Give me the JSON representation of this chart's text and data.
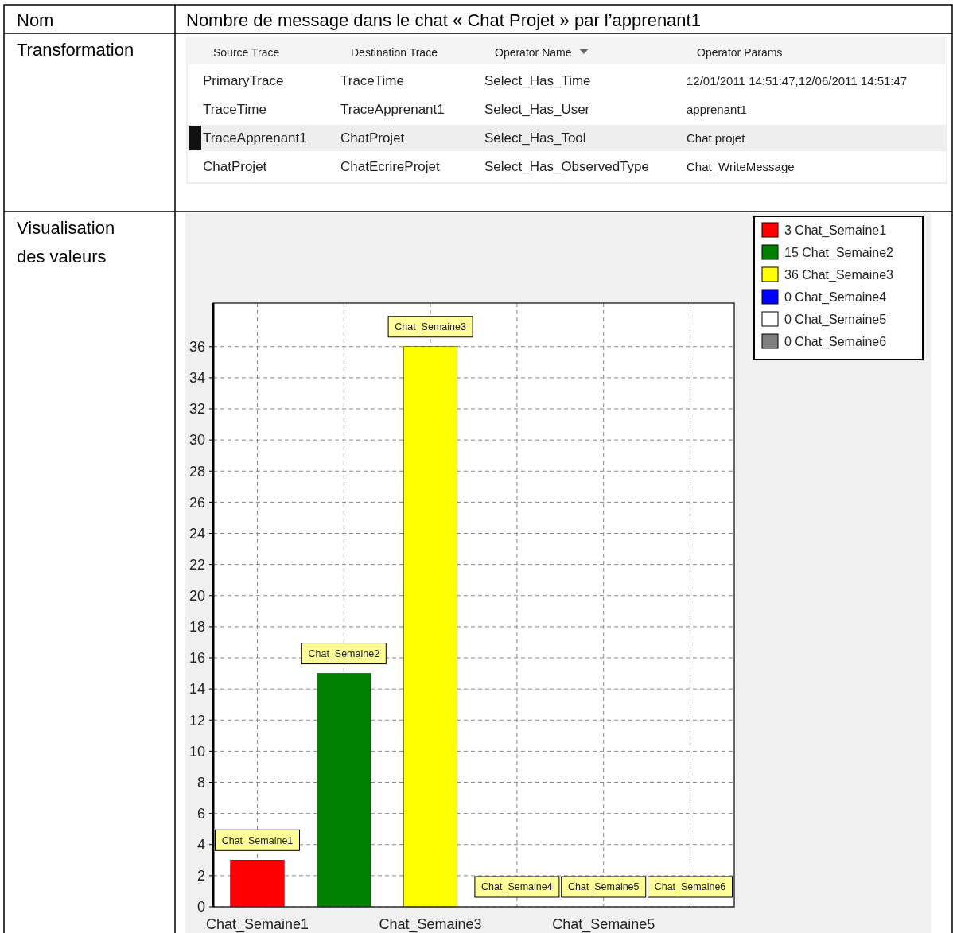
{
  "chart_data": {
    "type": "bar",
    "title": "Nombre de message dans le chat « Chat Projet » par l’apprenant1",
    "categories": [
      "Chat_Semaine1",
      "Chat_Semaine2",
      "Chat_Semaine3",
      "Chat_Semaine4",
      "Chat_Semaine5",
      "Chat_Semaine6"
    ],
    "stacked": true,
    "series": [
      {
        "name": "3 Chat_Semaine1",
        "color": "#ff0000",
        "values": [
          3,
          null,
          null,
          null,
          null,
          null
        ]
      },
      {
        "name": "15 Chat_Semaine2",
        "color": "#008000",
        "values": [
          null,
          15,
          null,
          null,
          null,
          null
        ]
      },
      {
        "name": "36 Chat_Semaine3",
        "color": "#ffff00",
        "values": [
          null,
          null,
          36,
          null,
          null,
          null
        ]
      },
      {
        "name": "0 Chat_Semaine4",
        "color": "#0000ff",
        "values": [
          null,
          null,
          null,
          0,
          null,
          null
        ]
      },
      {
        "name": "0 Chat_Semaine5",
        "color": "#ffffff",
        "values": [
          null,
          null,
          null,
          null,
          0,
          null
        ]
      },
      {
        "name": "0 Chat_Semaine6",
        "color": "#808080",
        "values": [
          null,
          null,
          null,
          null,
          null,
          0
        ]
      }
    ],
    "ylim": [
      0,
      38.8
    ],
    "yticks": [
      0,
      2,
      4,
      6,
      8,
      10,
      12,
      14,
      16,
      18,
      20,
      22,
      24,
      26,
      28,
      30,
      32,
      34,
      36
    ],
    "grid": true,
    "legend": "top right",
    "annotations": [
      "Nom",
      "Transformation",
      "Visualisation des valeurs",
      "Source Trace",
      "Destination Trace",
      "Operator Name",
      "Operator Params",
      "PrimaryTrace",
      "TraceTime",
      "Select_Has_Time",
      "12/01/2011 14:51:47,12/06/2011 14:51:47",
      "TraceTime",
      "TraceApprenant1",
      "Select_Has_User",
      "apprenant1",
      "TraceApprenant1",
      "ChatProjet",
      "Select_Has_Tool",
      "Chat projet",
      "ChatProjet",
      "ChatEcrireProjet",
      "Select_Has_ObservedType",
      "Chat_WriteMessage"
    ]
  }
}
